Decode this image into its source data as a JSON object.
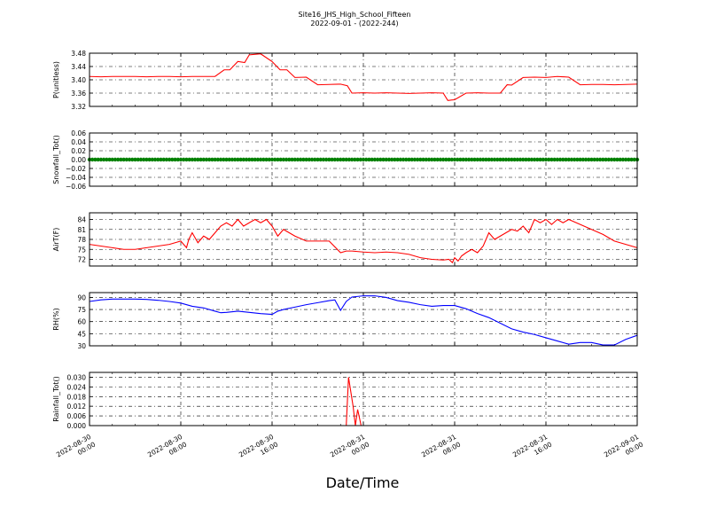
{
  "title": "Site16_JHS_High_School_Fifteen",
  "subtitle": "2022-09-01 - (2022-244)",
  "xlabel": "Date/Time",
  "x_ticks": [
    {
      "top": "2022-08-30",
      "bottom": "00:00"
    },
    {
      "top": "2022-08-30",
      "bottom": "08:00"
    },
    {
      "top": "2022-08-30",
      "bottom": "16:00"
    },
    {
      "top": "2022-08-31",
      "bottom": "00:00"
    },
    {
      "top": "2022-08-31",
      "bottom": "08:00"
    },
    {
      "top": "2022-08-31",
      "bottom": "16:00"
    },
    {
      "top": "2022-09-01",
      "bottom": "00:00"
    }
  ],
  "chart_data": [
    {
      "type": "line",
      "ylabel": "P(unitless)",
      "color": "#ff0000",
      "ylim": [
        3.32,
        3.48
      ],
      "yticks": [
        "3.32",
        "3.36",
        "3.40",
        "3.44",
        "3.48"
      ],
      "xlim_hours": [
        0,
        48
      ],
      "grid": true,
      "x_hours": [
        0,
        1,
        2,
        3,
        4,
        5,
        6,
        7,
        8,
        9,
        10,
        11,
        11.8,
        12.3,
        13,
        13.6,
        14,
        15,
        16,
        16.7,
        17.3,
        18,
        19,
        20,
        21,
        22,
        22.6,
        23,
        24,
        25,
        26,
        27,
        28,
        29,
        30,
        31,
        31.4,
        32,
        33,
        34,
        35,
        36,
        36.6,
        37,
        38,
        39,
        40,
        41,
        42,
        43,
        44,
        45,
        46,
        47,
        48
      ],
      "y": [
        3.41,
        3.409,
        3.41,
        3.41,
        3.41,
        3.409,
        3.41,
        3.41,
        3.409,
        3.41,
        3.41,
        3.41,
        3.43,
        3.43,
        3.455,
        3.452,
        3.475,
        3.478,
        3.455,
        3.43,
        3.43,
        3.407,
        3.408,
        3.385,
        3.386,
        3.387,
        3.382,
        3.36,
        3.361,
        3.36,
        3.361,
        3.36,
        3.359,
        3.36,
        3.361,
        3.36,
        3.338,
        3.34,
        3.36,
        3.361,
        3.36,
        3.36,
        3.385,
        3.384,
        3.407,
        3.408,
        3.407,
        3.41,
        3.408,
        3.385,
        3.386,
        3.386,
        3.385,
        3.386,
        3.387
      ]
    },
    {
      "type": "scatter",
      "ylabel": "Snowfall_Tot()",
      "color": "#008000",
      "ylim": [
        -0.06,
        0.06
      ],
      "yticks": [
        "−0.06",
        "−0.04",
        "−0.02",
        "0.00",
        "0.02",
        "0.04",
        "0.06"
      ],
      "xlim_hours": [
        0,
        48
      ],
      "grid": true,
      "x_start": 0,
      "x_end": 48,
      "x_step": 0.25,
      "constant_value": 0.0
    },
    {
      "type": "line",
      "ylabel": "AirT(F)",
      "color": "#ff0000",
      "ylim": [
        70,
        86
      ],
      "yticks": [
        "72",
        "75",
        "78",
        "81",
        "84"
      ],
      "xlim_hours": [
        0,
        48
      ],
      "grid": true,
      "x_hours": [
        0,
        1,
        2,
        3,
        4,
        5,
        6,
        7,
        8,
        8.5,
        8.7,
        9,
        9.5,
        10,
        10.5,
        11,
        11.5,
        12,
        12.5,
        13,
        13.5,
        14,
        14.5,
        15,
        15.5,
        16,
        16.5,
        17,
        17.5,
        18,
        19,
        20,
        21,
        22,
        22.5,
        23,
        24,
        25,
        26,
        27,
        28,
        29,
        30,
        31,
        31.5,
        31.8,
        32,
        32.3,
        32.6,
        33,
        33.5,
        34,
        34.5,
        35,
        35.5,
        36,
        36.5,
        37,
        37.5,
        38,
        38.5,
        39,
        39.5,
        40,
        40.5,
        41,
        41.5,
        42,
        43,
        44,
        45,
        46,
        47,
        48
      ],
      "y": [
        76.5,
        76,
        75.5,
        75,
        75,
        75.5,
        76,
        76.5,
        77.5,
        75.5,
        78,
        80,
        77,
        79,
        78,
        80,
        82,
        83,
        82,
        84,
        82,
        83,
        84,
        83,
        84,
        82,
        79,
        81,
        80,
        79,
        77.5,
        77.5,
        77.5,
        74,
        74.5,
        74.5,
        74.2,
        74,
        74.2,
        74,
        73.5,
        72.5,
        72,
        71.8,
        72,
        71,
        72.5,
        71.5,
        73,
        74,
        75,
        74,
        76,
        80,
        78,
        79,
        80,
        81,
        80.5,
        82,
        80,
        84,
        83,
        84,
        82.5,
        84,
        83,
        84,
        82.5,
        81,
        79.5,
        77.5,
        76.5,
        75.5
      ]
    },
    {
      "type": "line",
      "ylabel": "RH(%)",
      "color": "#0000ff",
      "ylim": [
        30,
        96
      ],
      "yticks": [
        "30",
        "45",
        "60",
        "75",
        "90"
      ],
      "xlim_hours": [
        0,
        48
      ],
      "grid": true,
      "x_hours": [
        0,
        1,
        2,
        3,
        4,
        5,
        6,
        7,
        8,
        9,
        10,
        11,
        11.5,
        12,
        13,
        14,
        15,
        16,
        16.5,
        17,
        18,
        19,
        20,
        21,
        21.5,
        22,
        22.5,
        23,
        24,
        25,
        26,
        27,
        28,
        29,
        30,
        31,
        32,
        33,
        34,
        35,
        36,
        37,
        38,
        39,
        40,
        41,
        42,
        43,
        44,
        45,
        46,
        47,
        48
      ],
      "y": [
        85,
        87,
        88,
        88,
        88,
        87.5,
        86.5,
        85,
        83,
        79,
        77,
        73,
        71,
        71.5,
        73,
        71.5,
        70,
        69,
        73,
        75,
        78,
        81,
        83.5,
        86,
        87,
        74,
        85,
        90.5,
        92,
        92,
        90,
        86,
        84,
        81,
        79,
        80,
        80,
        76,
        70,
        65,
        58,
        51,
        47,
        44,
        40,
        36,
        32,
        34,
        34,
        31,
        31,
        38,
        43
      ]
    },
    {
      "type": "line",
      "ylabel": "Rainfall_Tot()",
      "color": "#ff0000",
      "ylim": [
        0,
        0.033
      ],
      "yticks": [
        "0.000",
        "0.006",
        "0.012",
        "0.018",
        "0.024",
        "0.030"
      ],
      "xlim_hours": [
        0,
        48
      ],
      "grid": true,
      "x_hours": [
        0,
        22.5,
        22.7,
        23.1,
        23.3,
        23.5,
        23.8,
        48
      ],
      "y": [
        0,
        0,
        0.03,
        0.012,
        0,
        0.01,
        0,
        0
      ]
    }
  ]
}
